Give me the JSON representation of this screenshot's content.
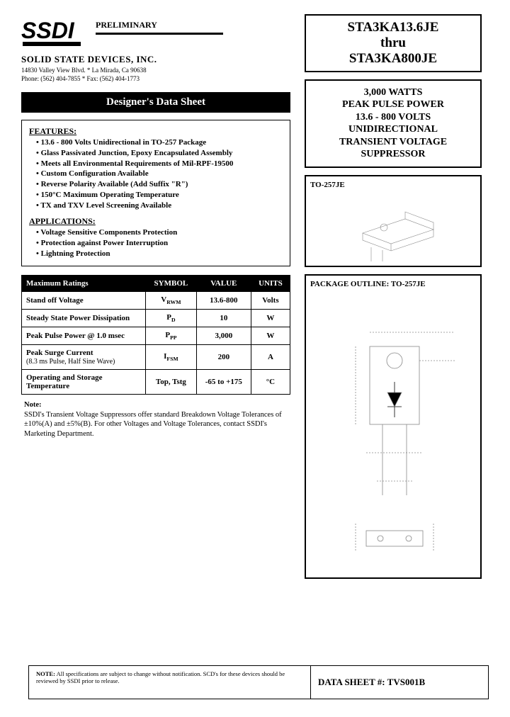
{
  "header": {
    "preliminary": "PRELIMINARY",
    "company_name": "SOLID STATE DEVICES, INC.",
    "address": "14830 Valley View Blvd. * La Mirada, Ca 90638",
    "phone": "Phone: (562) 404-7855 * Fax: (562) 404-1773"
  },
  "banner": "Designer's Data Sheet",
  "features": {
    "title": "FEATURES:",
    "items": [
      "13.6 - 800 Volts Unidirectional in TO-257 Package",
      "Glass Passivated Junction, Epoxy Encapsulated Assembly",
      "Meets all Environmental Requirements of Mil-RPF-19500",
      "Custom Configuration Available",
      "Reverse Polarity Available (Add Suffix \"R\")",
      "150°C Maximum Operating Temperature",
      "TX and TXV Level Screening Available"
    ],
    "apps_title": "APPLICATIONS:",
    "apps": [
      "Voltage Sensitive Components Protection",
      "Protection against Power Interruption",
      "Lightning Protection"
    ]
  },
  "ratings": {
    "headers": [
      "Maximum Ratings",
      "SYMBOL",
      "VALUE",
      "UNITS"
    ],
    "rows": [
      {
        "param": "Stand off Voltage",
        "sub": "",
        "symbol": "V",
        "symbol_sub": "RWM",
        "value": "13.6-800",
        "units": "Volts"
      },
      {
        "param": "Steady State Power Dissipation",
        "sub": "",
        "symbol": "P",
        "symbol_sub": "D",
        "value": "10",
        "units": "W"
      },
      {
        "param": "Peak Pulse Power @ 1.0 msec",
        "sub": "",
        "symbol": "P",
        "symbol_sub": "PP",
        "value": "3,000",
        "units": "W"
      },
      {
        "param": "Peak Surge Current",
        "sub": "(8.3 ms Pulse, Half Sine Wave)",
        "symbol": "I",
        "symbol_sub": "FSM",
        "value": "200",
        "units": "A"
      },
      {
        "param": "Operating and Storage Temperature",
        "sub": "",
        "symbol": "Top, Tstg",
        "symbol_sub": "",
        "value": "-65 to +175",
        "units": "°C"
      }
    ]
  },
  "note": {
    "label": "Note:",
    "text": "SSDI's Transient Voltage Suppressors offer standard Breakdown Voltage Tolerances of ±10%(A) and ±5%(B). For other Voltages and Voltage Tolerances, contact SSDI's Marketing Department."
  },
  "part": {
    "line1": "STA3KA13.6JE",
    "line2": "thru",
    "line3": "STA3KA800JE"
  },
  "desc": {
    "line1": "3,000 WATTS",
    "line2": "PEAK PULSE POWER",
    "line3": "13.6 - 800 VOLTS",
    "line4": "UNIDIRECTIONAL",
    "line5": "TRANSIENT VOLTAGE",
    "line6": "SUPPRESSOR"
  },
  "package": {
    "label": "TO-257JE"
  },
  "outline": {
    "title": "PACKAGE OUTLINE:  TO-257JE"
  },
  "footer": {
    "note_label": "NOTE:",
    "note_text": "All specifications are subject to change without notification. SCD's for these devices should be reviewed by SSDI prior to release.",
    "datasheet": "DATA SHEET #:   TVS001B"
  }
}
